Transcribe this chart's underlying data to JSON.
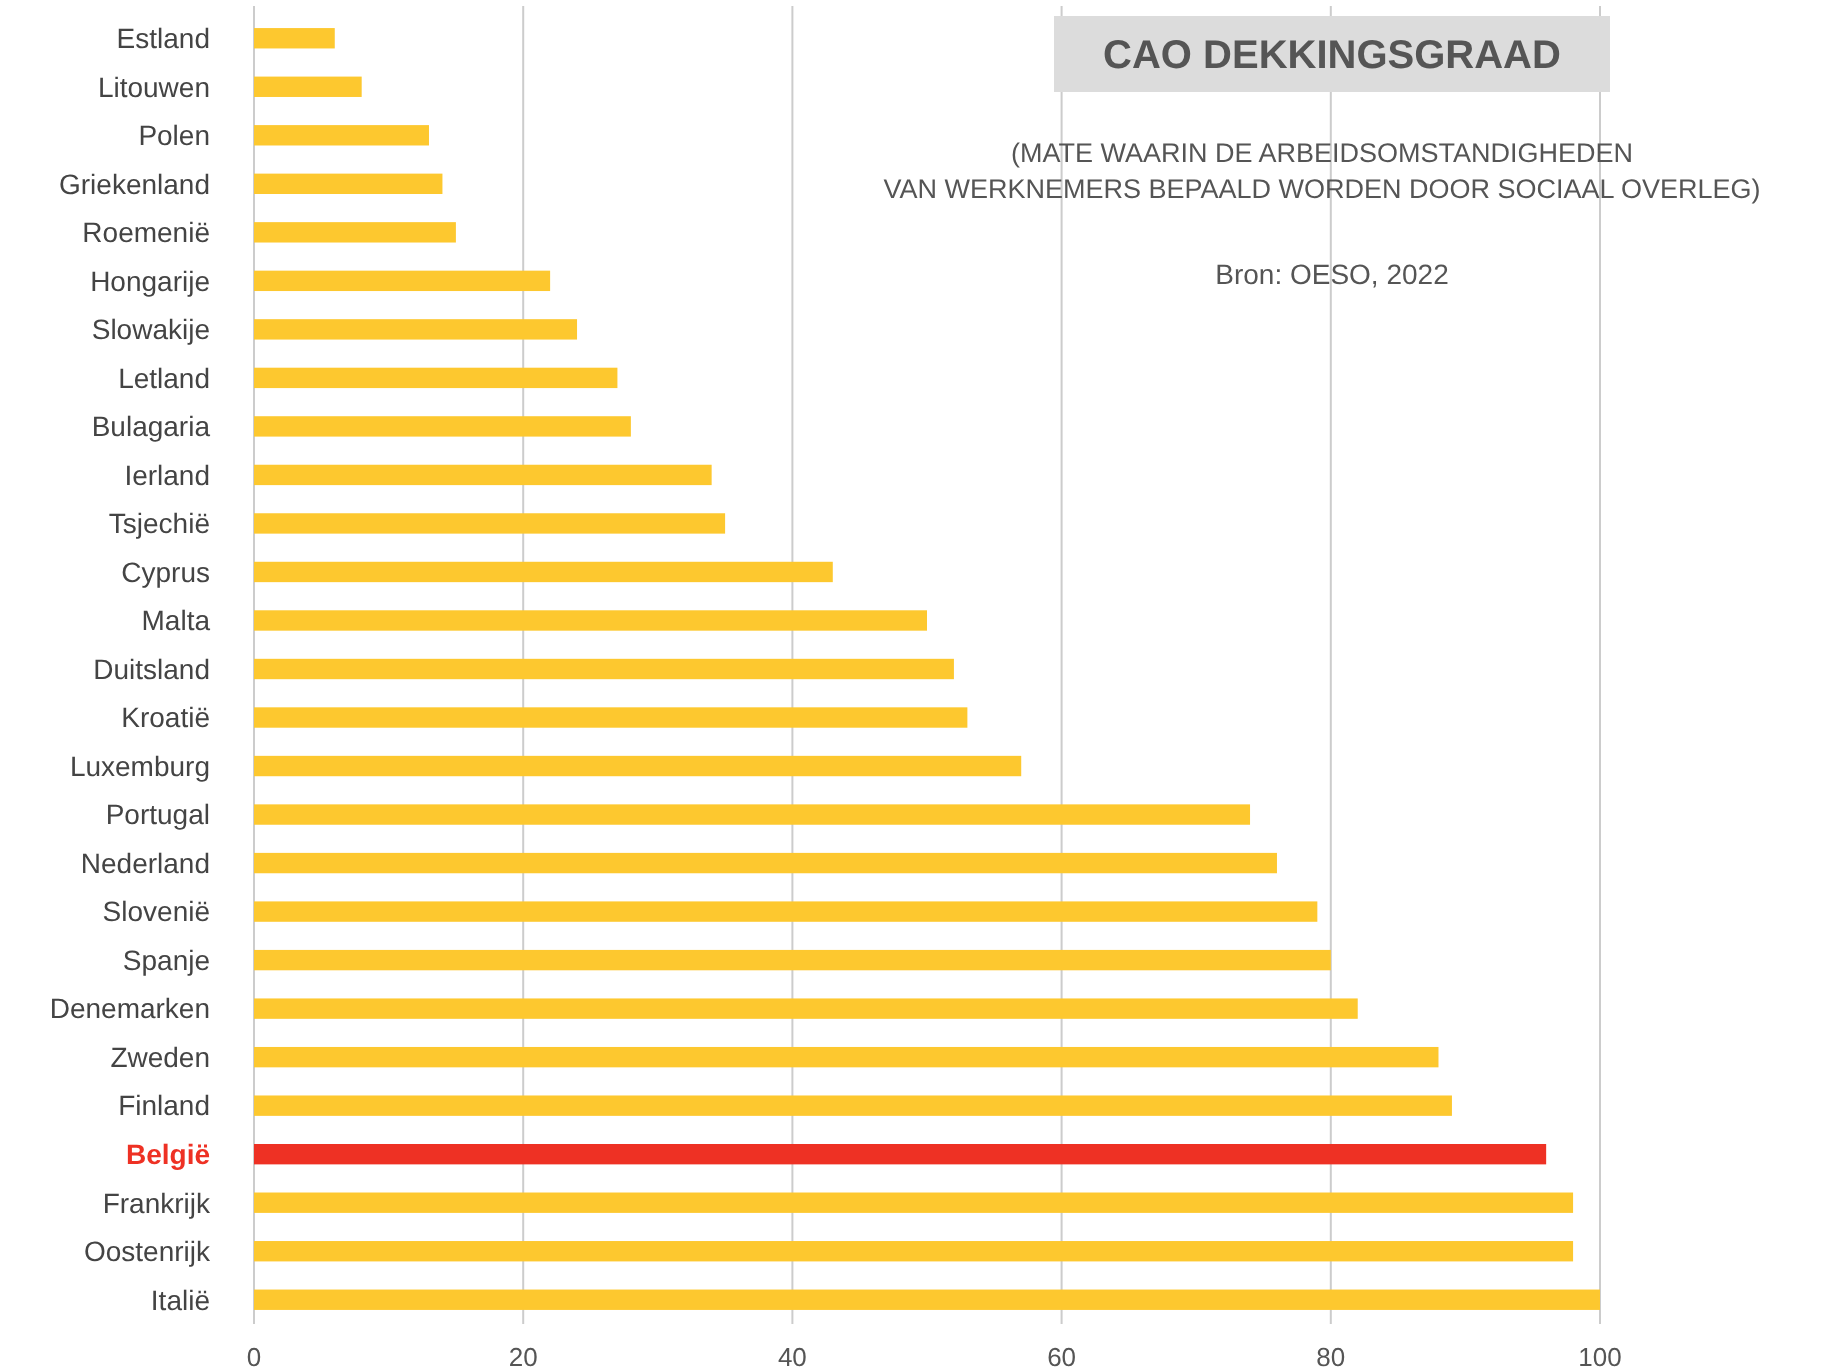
{
  "chart_data": {
    "type": "bar",
    "orientation": "horizontal",
    "title": "CAO DEKKINGSGRAAD",
    "subtitle": "(MATE WAARIN DE ARBEIDSOMSTANDIGHEDEN\nVAN WERKNEMERS BEPAALD WORDEN DOOR SOCIAAL OVERLEG)",
    "annotations": [
      "Bron: OESO, 2022"
    ],
    "categories": [
      "Estland",
      "Litouwen",
      "Polen",
      "Griekenland",
      "Roemenië",
      "Hongarije",
      "Slowakije",
      "Letland",
      "Bulagaria",
      "Ierland",
      "Tsjechië",
      "Cyprus",
      "Malta",
      "Duitsland",
      "Kroatië",
      "Luxemburg",
      "Portugal",
      "Nederland",
      "Slovenië",
      "Spanje",
      "Denemarken",
      "Zweden",
      "Finland",
      "België",
      "Frankrijk",
      "Oostenrijk",
      "Italië"
    ],
    "values": [
      6,
      8,
      13,
      14,
      15,
      22,
      24,
      27,
      28,
      34,
      35,
      43,
      50,
      52,
      53,
      57,
      74,
      76,
      79,
      80,
      82,
      88,
      89,
      96,
      98,
      98,
      100
    ],
    "colors": [
      "#fdc82f",
      "#fdc82f",
      "#fdc82f",
      "#fdc82f",
      "#fdc82f",
      "#fdc82f",
      "#fdc82f",
      "#fdc82f",
      "#fdc82f",
      "#fdc82f",
      "#fdc82f",
      "#fdc82f",
      "#fdc82f",
      "#fdc82f",
      "#fdc82f",
      "#fdc82f",
      "#fdc82f",
      "#fdc82f",
      "#fdc82f",
      "#fdc82f",
      "#fdc82f",
      "#fdc82f",
      "#fdc82f",
      "#ee3124",
      "#fdc82f",
      "#fdc82f",
      "#fdc82f"
    ],
    "xlim": [
      0,
      100
    ],
    "xticks": [
      0,
      20,
      40,
      60,
      80,
      100
    ],
    "grid": "x"
  }
}
